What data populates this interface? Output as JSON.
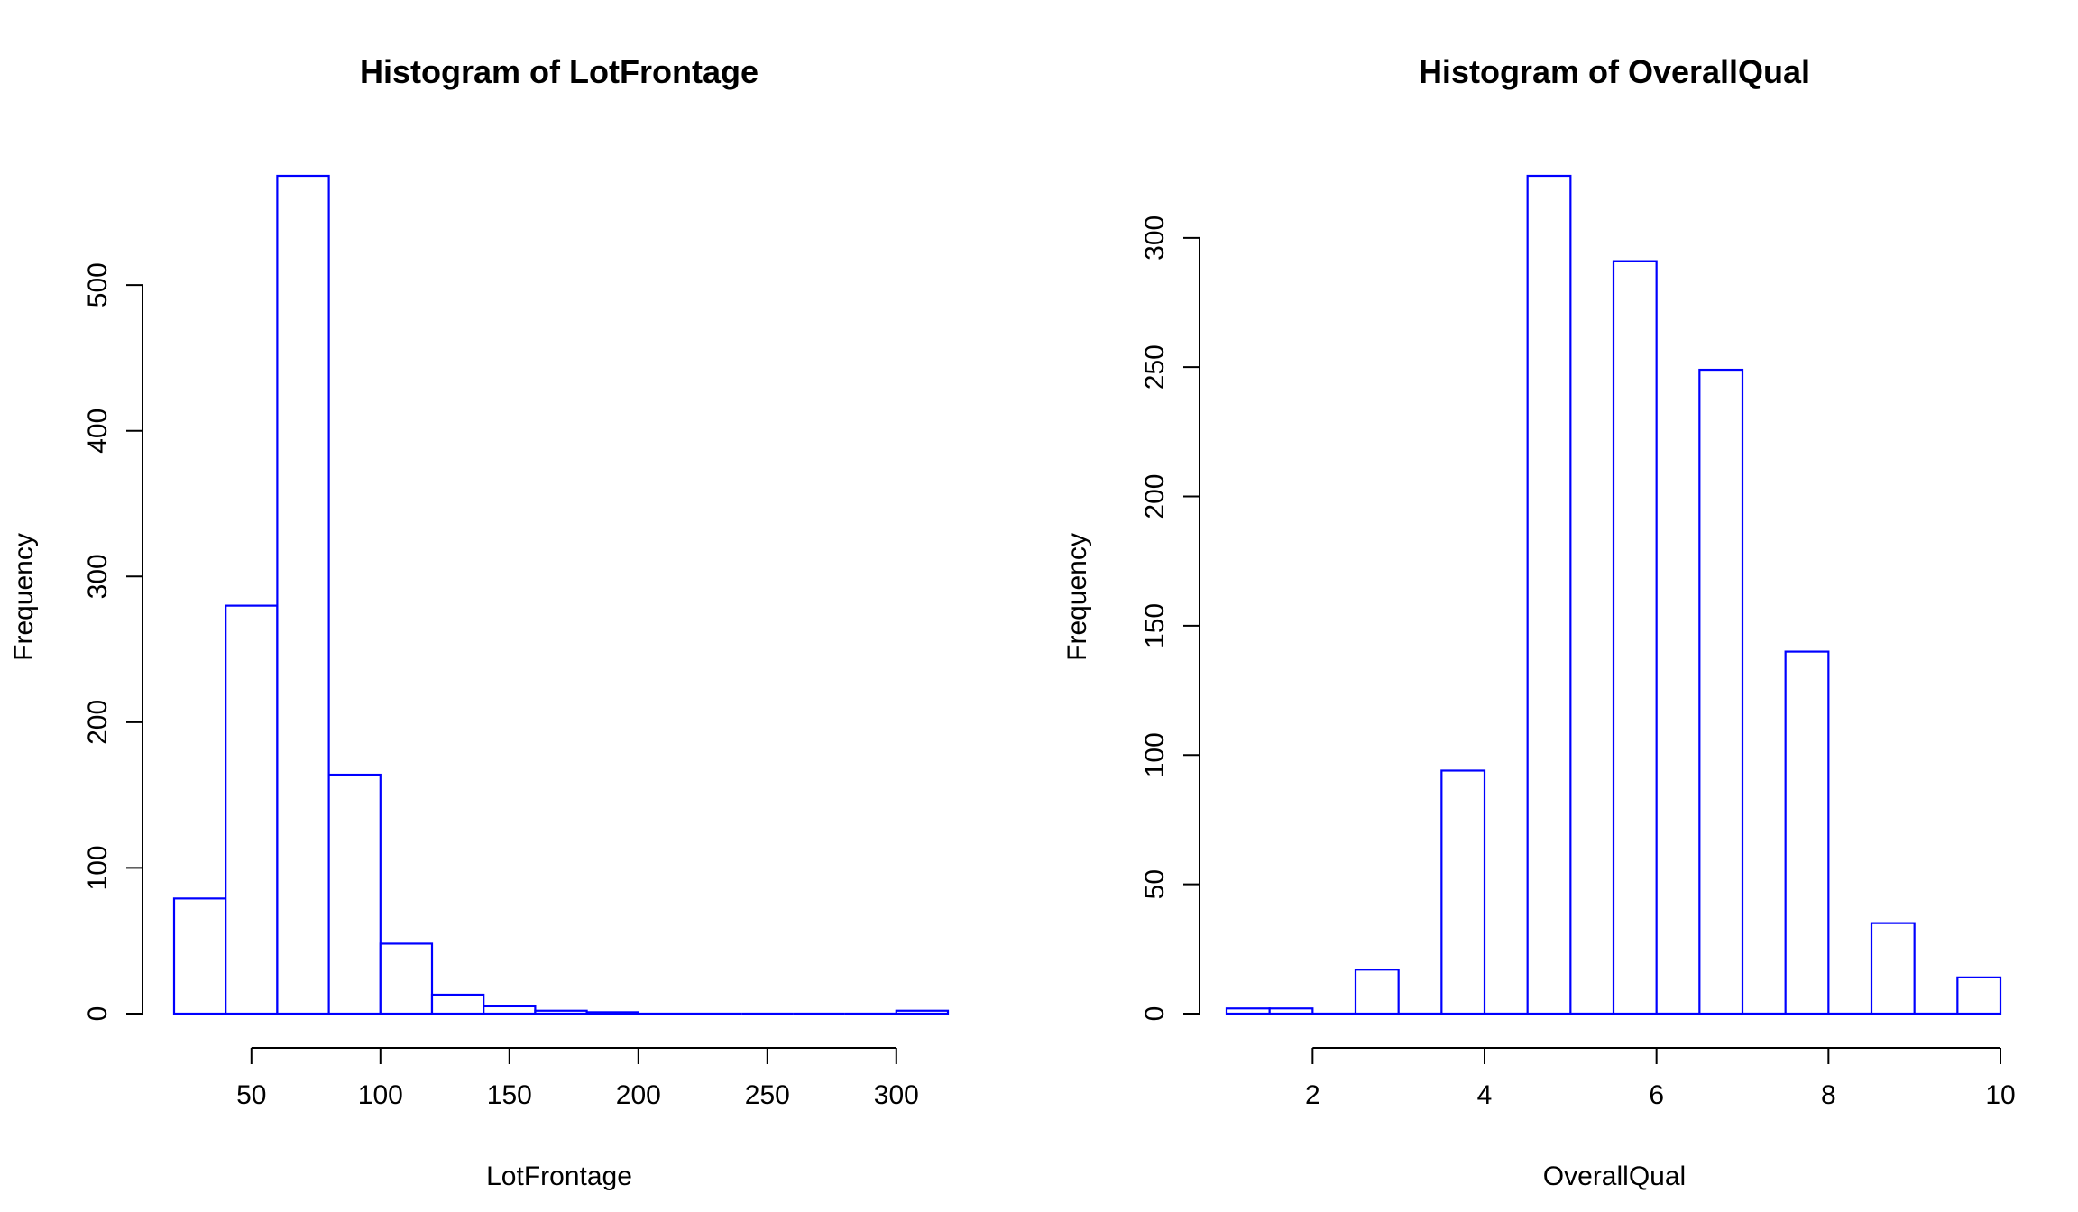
{
  "chart_data": [
    {
      "type": "bar",
      "title": "Histogram of  LotFrontage",
      "xlabel": "LotFrontage",
      "ylabel": "Frequency",
      "bar_color": "#0000FF",
      "bins": [
        [
          20,
          40
        ],
        [
          40,
          60
        ],
        [
          60,
          80
        ],
        [
          80,
          100
        ],
        [
          100,
          120
        ],
        [
          120,
          140
        ],
        [
          140,
          160
        ],
        [
          160,
          180
        ],
        [
          180,
          200
        ],
        [
          200,
          220
        ],
        [
          220,
          240
        ],
        [
          240,
          260
        ],
        [
          260,
          280
        ],
        [
          280,
          300
        ],
        [
          300,
          320
        ]
      ],
      "values": [
        79,
        280,
        575,
        164,
        48,
        13,
        5,
        2,
        1,
        0,
        0,
        0,
        0,
        0,
        2
      ],
      "xlim": [
        20,
        320
      ],
      "ylim": [
        0,
        575
      ],
      "x_ticks": [
        50,
        100,
        150,
        200,
        250,
        300
      ],
      "y_ticks": [
        0,
        100,
        200,
        300,
        400,
        500
      ],
      "grid": false
    },
    {
      "type": "bar",
      "title": "Histogram of  OverallQual",
      "xlabel": "OverallQual",
      "ylabel": "Frequency",
      "bar_color": "#0000FF",
      "bins": [
        [
          1,
          1.5
        ],
        [
          1.5,
          2
        ],
        [
          2,
          2.5
        ],
        [
          2.5,
          3
        ],
        [
          3,
          3.5
        ],
        [
          3.5,
          4
        ],
        [
          4,
          4.5
        ],
        [
          4.5,
          5
        ],
        [
          5,
          5.5
        ],
        [
          5.5,
          6
        ],
        [
          6,
          6.5
        ],
        [
          6.5,
          7
        ],
        [
          7,
          7.5
        ],
        [
          7.5,
          8
        ],
        [
          8,
          8.5
        ],
        [
          8.5,
          9
        ],
        [
          9,
          9.5
        ],
        [
          9.5,
          10
        ]
      ],
      "values": [
        2,
        2,
        0,
        17,
        0,
        94,
        0,
        324,
        0,
        291,
        0,
        249,
        0,
        140,
        0,
        35,
        0,
        14
      ],
      "xlim": [
        1,
        10
      ],
      "ylim": [
        0,
        324
      ],
      "x_ticks": [
        2,
        4,
        6,
        8,
        10
      ],
      "y_ticks": [
        0,
        50,
        100,
        150,
        200,
        250,
        300
      ],
      "grid": false
    }
  ]
}
